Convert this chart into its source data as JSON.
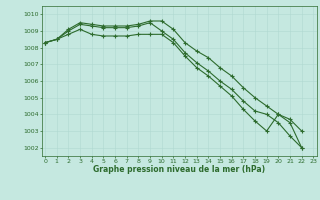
{
  "title": "Graphe pression niveau de la mer (hPa)",
  "bg_color": "#c5e8e0",
  "grid_color": "#b0d8d0",
  "line_color": "#2d6b2d",
  "x_ticks": [
    0,
    1,
    2,
    3,
    4,
    5,
    6,
    7,
    8,
    9,
    10,
    11,
    12,
    13,
    14,
    15,
    16,
    17,
    18,
    19,
    20,
    21,
    22,
    23
  ],
  "y_ticks": [
    1002,
    1003,
    1004,
    1005,
    1006,
    1007,
    1008,
    1009,
    1010
  ],
  "ylim": [
    1001.5,
    1010.5
  ],
  "xlim": [
    -0.3,
    23.3
  ],
  "line1": [
    1008.3,
    1008.5,
    1009.0,
    1009.4,
    1009.3,
    1009.2,
    1009.2,
    1009.2,
    1009.3,
    1009.5,
    1009.0,
    1008.5,
    1007.7,
    1007.1,
    1006.6,
    1006.0,
    1005.5,
    1004.8,
    1004.2,
    1004.0,
    1003.5,
    1002.7,
    1002.0
  ],
  "line2": [
    1008.3,
    1008.5,
    1009.1,
    1009.5,
    1009.4,
    1009.3,
    1009.3,
    1009.3,
    1009.4,
    1009.6,
    1009.6,
    1009.1,
    1008.3,
    1007.8,
    1007.4,
    1006.8,
    1006.3,
    1005.6,
    1005.0,
    1004.5,
    1004.0,
    1003.7,
    1003.0
  ],
  "line3": [
    1008.3,
    1008.5,
    1008.8,
    1009.1,
    1008.8,
    1008.7,
    1008.7,
    1008.7,
    1008.8,
    1008.8,
    1008.8,
    1008.3,
    1007.5,
    1006.8,
    1006.3,
    1005.7,
    1005.1,
    1004.3,
    1003.6,
    1003.0,
    1004.0,
    1003.5,
    1002.0
  ],
  "marker": "+"
}
